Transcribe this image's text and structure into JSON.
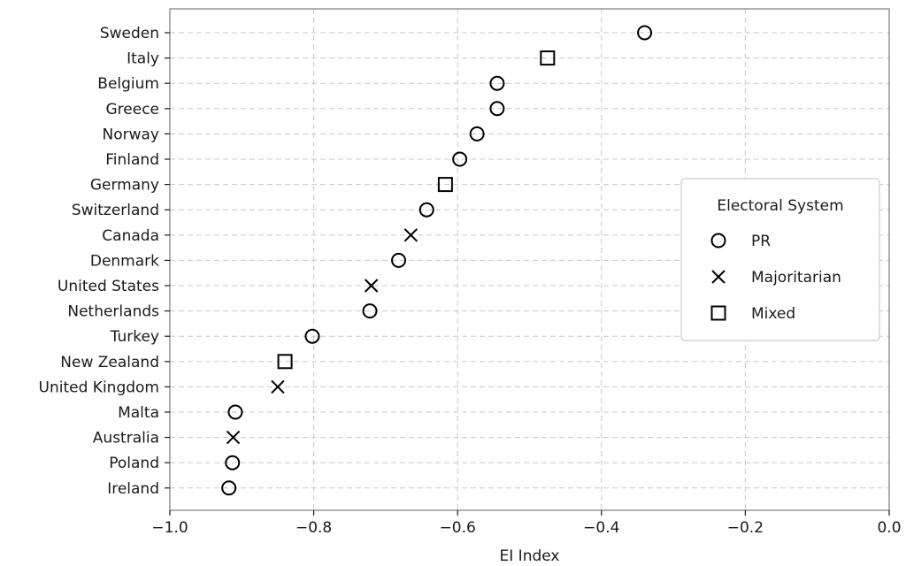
{
  "chart_data": {
    "type": "scatter",
    "title": "",
    "xlabel": "EI Index",
    "ylabel": "",
    "xlim": [
      -1.0,
      0.0
    ],
    "x_ticks": [
      -1.0,
      -0.8,
      -0.6,
      -0.4,
      -0.2,
      0.0
    ],
    "x_tick_labels": [
      "−1.0",
      "−0.8",
      "−0.6",
      "−0.4",
      "−0.2",
      "0.0"
    ],
    "grid": true,
    "legend": {
      "title": "Electoral System",
      "position": "right",
      "entries": [
        {
          "label": "PR",
          "marker": "circle"
        },
        {
          "label": "Majoritarian",
          "marker": "x"
        },
        {
          "label": "Mixed",
          "marker": "square"
        }
      ]
    },
    "points": [
      {
        "country": "Sweden",
        "value": -0.34,
        "system": "PR"
      },
      {
        "country": "Italy",
        "value": -0.475,
        "system": "Mixed"
      },
      {
        "country": "Belgium",
        "value": -0.545,
        "system": "PR"
      },
      {
        "country": "Greece",
        "value": -0.545,
        "system": "PR"
      },
      {
        "country": "Norway",
        "value": -0.573,
        "system": "PR"
      },
      {
        "country": "Finland",
        "value": -0.597,
        "system": "PR"
      },
      {
        "country": "Germany",
        "value": -0.617,
        "system": "Mixed"
      },
      {
        "country": "Switzerland",
        "value": -0.643,
        "system": "PR"
      },
      {
        "country": "Canada",
        "value": -0.665,
        "system": "Majoritarian"
      },
      {
        "country": "Denmark",
        "value": -0.682,
        "system": "PR"
      },
      {
        "country": "United States",
        "value": -0.72,
        "system": "Majoritarian"
      },
      {
        "country": "Netherlands",
        "value": -0.722,
        "system": "PR"
      },
      {
        "country": "Turkey",
        "value": -0.802,
        "system": "PR"
      },
      {
        "country": "New Zealand",
        "value": -0.84,
        "system": "Mixed"
      },
      {
        "country": "United Kingdom",
        "value": -0.85,
        "system": "Majoritarian"
      },
      {
        "country": "Malta",
        "value": -0.909,
        "system": "PR"
      },
      {
        "country": "Australia",
        "value": -0.912,
        "system": "Majoritarian"
      },
      {
        "country": "Poland",
        "value": -0.913,
        "system": "PR"
      },
      {
        "country": "Ireland",
        "value": -0.918,
        "system": "PR"
      }
    ]
  }
}
